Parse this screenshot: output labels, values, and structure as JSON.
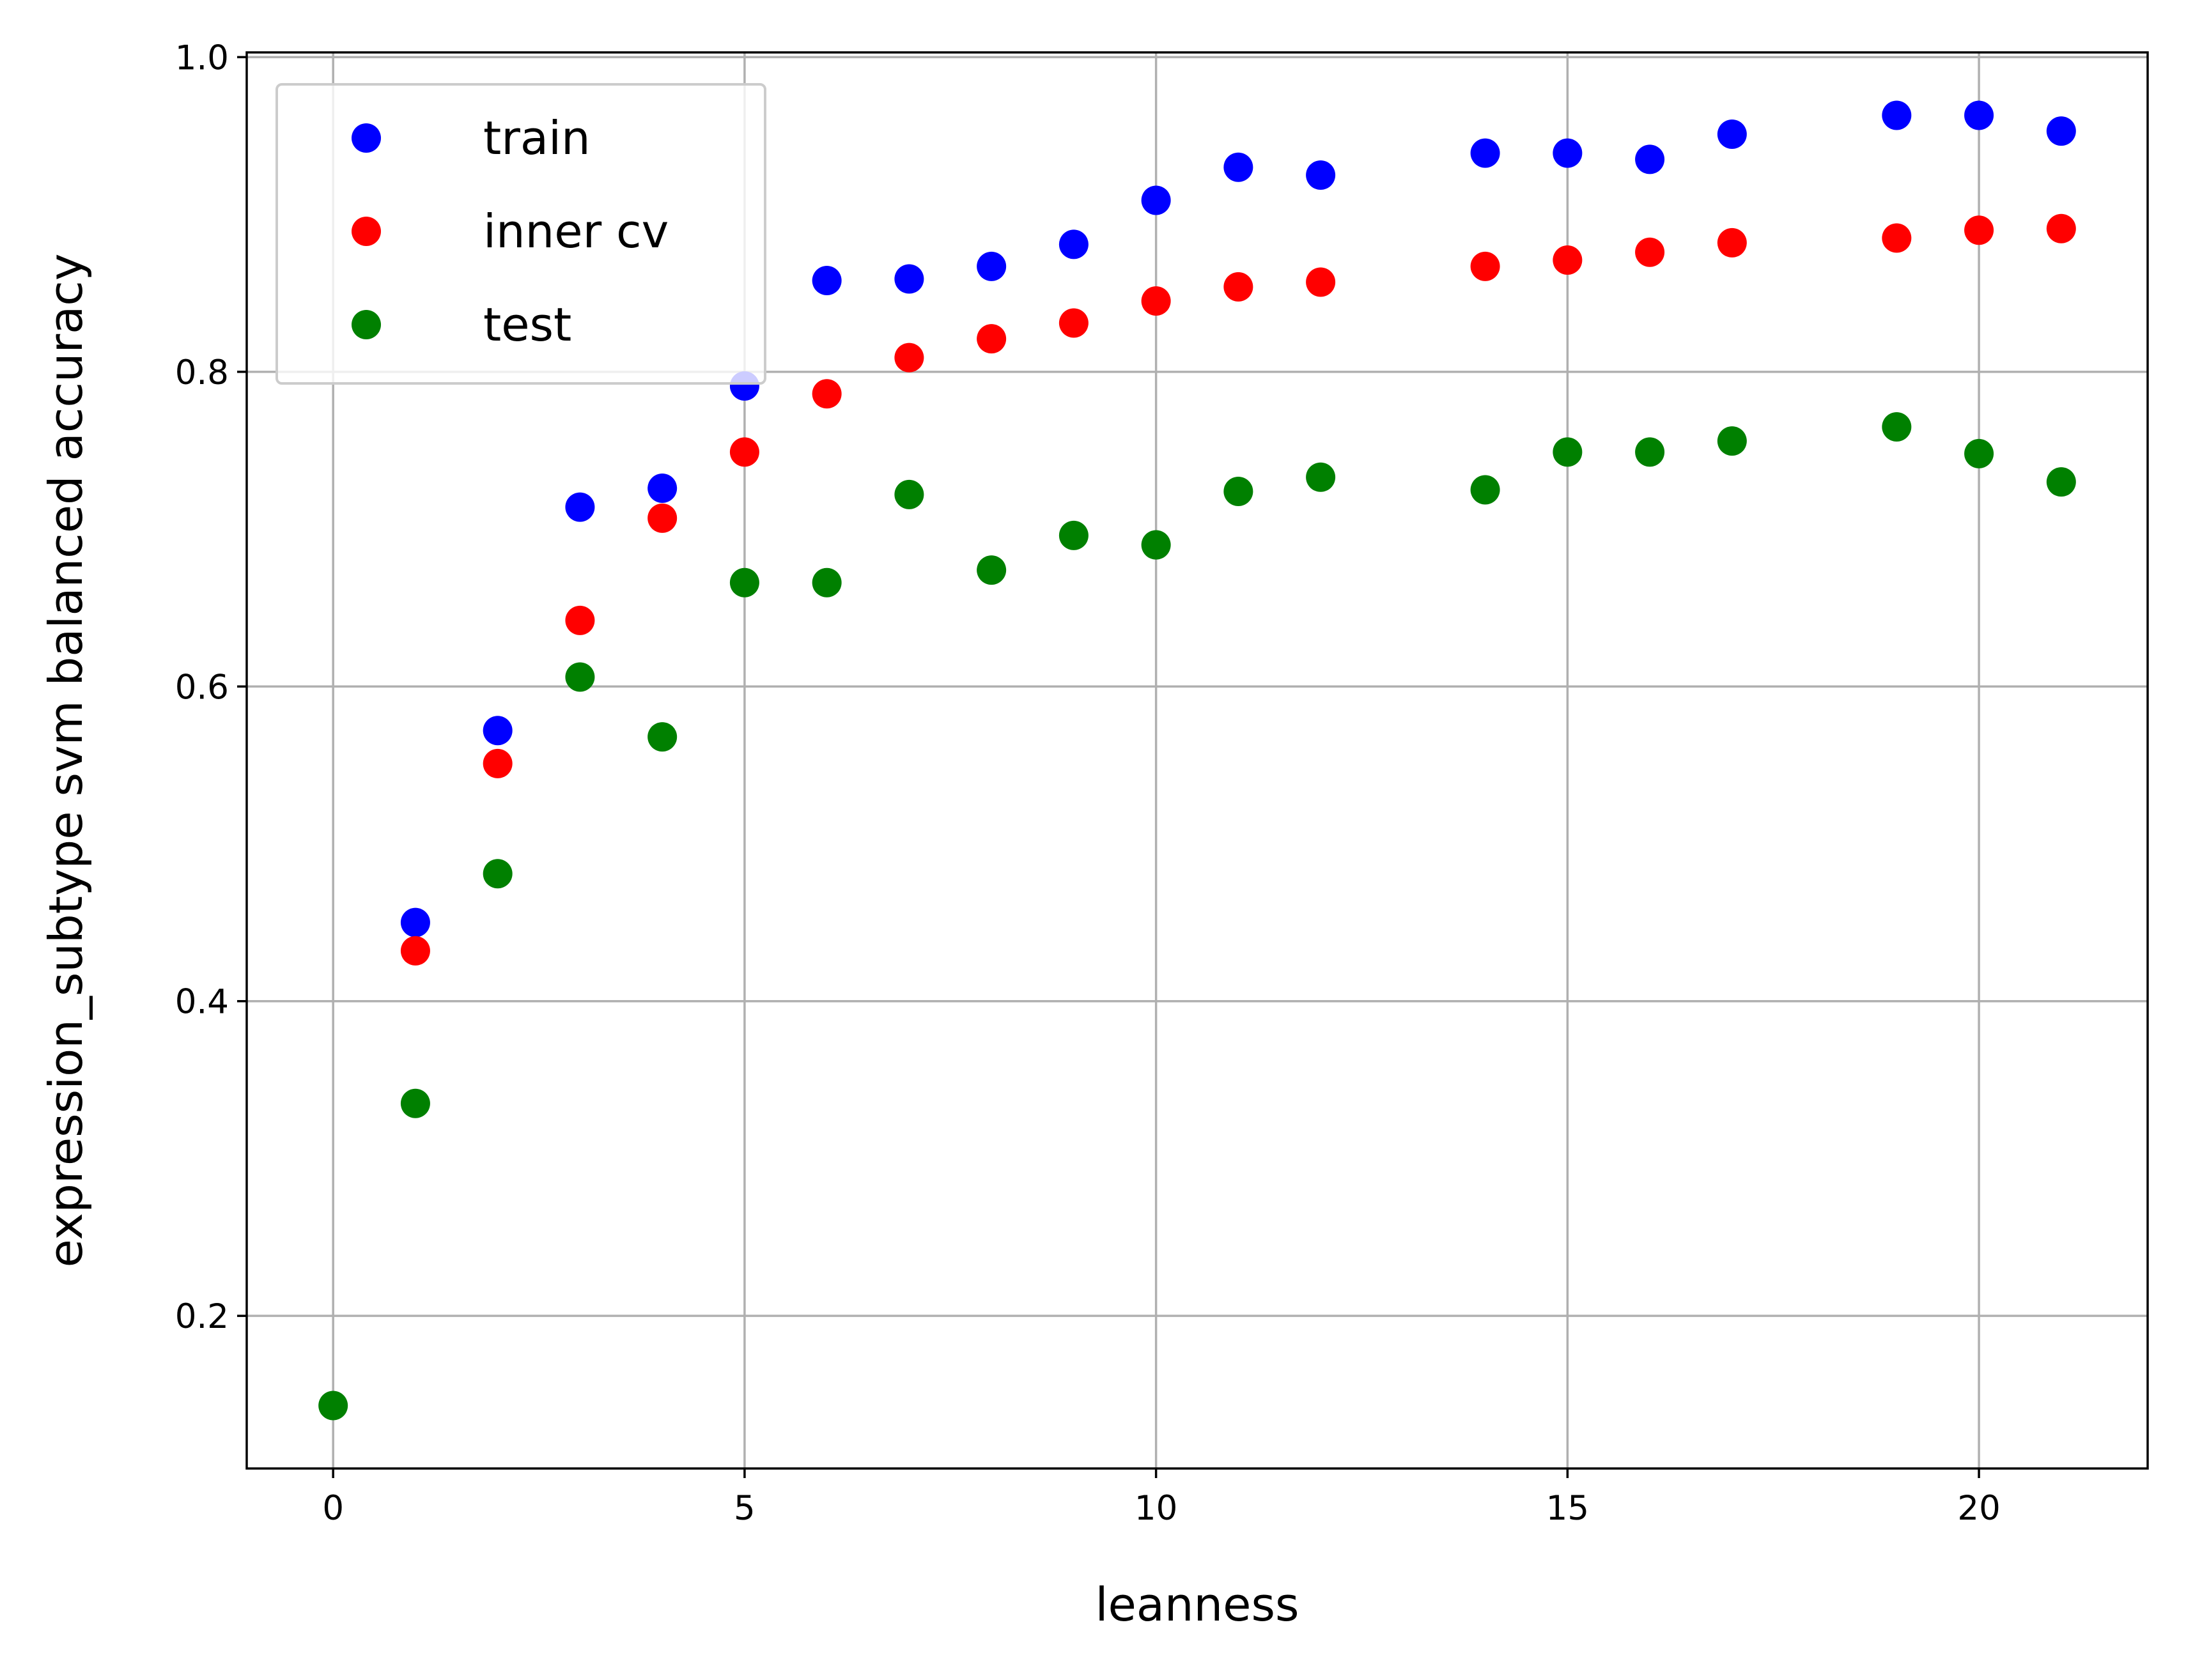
{
  "chart_data": {
    "type": "scatter",
    "title": "",
    "xlabel": "leanness",
    "ylabel": "expression_subtype svm balanced accuracy",
    "xlim": [
      -1.05,
      22.05
    ],
    "ylim": [
      0.103,
      1.003
    ],
    "xticks": [
      0,
      5,
      10,
      15,
      20
    ],
    "yticks": [
      0.2,
      0.4,
      0.6,
      0.8,
      1.0
    ],
    "xtick_labels": [
      "0",
      "5",
      "10",
      "15",
      "20"
    ],
    "ytick_labels": [
      "0.2",
      "0.4",
      "0.6",
      "0.8",
      "1.0"
    ],
    "grid": true,
    "legend_position": "upper-left",
    "series": [
      {
        "name": "train",
        "color": "#0000ff",
        "points": [
          [
            1,
            0.45
          ],
          [
            2,
            0.572
          ],
          [
            3,
            0.714
          ],
          [
            4,
            0.726
          ],
          [
            5,
            0.791
          ],
          [
            6,
            0.858
          ],
          [
            7,
            0.859
          ],
          [
            8,
            0.867
          ],
          [
            9,
            0.881
          ],
          [
            10,
            0.909
          ],
          [
            11,
            0.93
          ],
          [
            12,
            0.925
          ],
          [
            14,
            0.939
          ],
          [
            15,
            0.939
          ],
          [
            16,
            0.935
          ],
          [
            17,
            0.951
          ],
          [
            19,
            0.963
          ],
          [
            20,
            0.963
          ],
          [
            21,
            0.953
          ]
        ]
      },
      {
        "name": "inner cv",
        "color": "#ff0000",
        "points": [
          [
            1,
            0.432
          ],
          [
            2,
            0.551
          ],
          [
            3,
            0.642
          ],
          [
            4,
            0.707
          ],
          [
            5,
            0.749
          ],
          [
            6,
            0.786
          ],
          [
            7,
            0.809
          ],
          [
            8,
            0.821
          ],
          [
            9,
            0.831
          ],
          [
            10,
            0.845
          ],
          [
            11,
            0.854
          ],
          [
            12,
            0.857
          ],
          [
            14,
            0.867
          ],
          [
            15,
            0.871
          ],
          [
            16,
            0.876
          ],
          [
            17,
            0.882
          ],
          [
            19,
            0.885
          ],
          [
            20,
            0.89
          ],
          [
            21,
            0.891
          ]
        ]
      },
      {
        "name": "test",
        "color": "#008000",
        "points": [
          [
            0,
            0.143
          ],
          [
            1,
            0.335
          ],
          [
            2,
            0.481
          ],
          [
            3,
            0.606
          ],
          [
            4,
            0.568
          ],
          [
            5,
            0.666
          ],
          [
            6,
            0.666
          ],
          [
            7,
            0.722
          ],
          [
            8,
            0.674
          ],
          [
            9,
            0.696
          ],
          [
            10,
            0.69
          ],
          [
            11,
            0.724
          ],
          [
            12,
            0.733
          ],
          [
            14,
            0.725
          ],
          [
            15,
            0.749
          ],
          [
            16,
            0.749
          ],
          [
            17,
            0.756
          ],
          [
            19,
            0.765
          ],
          [
            20,
            0.748
          ],
          [
            21,
            0.73
          ]
        ]
      }
    ]
  }
}
